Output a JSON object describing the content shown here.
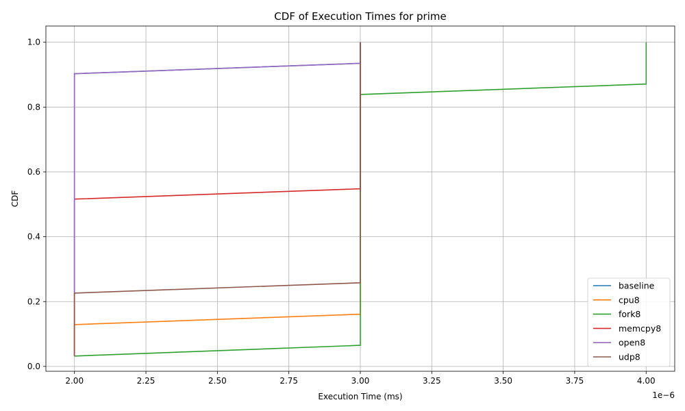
{
  "chart_data": {
    "type": "line",
    "title": "CDF of Execution Times for prime",
    "xlabel": "Execution Time (ms)",
    "ylabel": "CDF",
    "x_offset_label": "1e−6",
    "x_ticks": [
      2.0,
      2.25,
      2.5,
      2.75,
      3.0,
      3.25,
      3.5,
      3.75,
      4.0
    ],
    "x_tick_labels": [
      "2.00",
      "2.25",
      "2.50",
      "2.75",
      "3.00",
      "3.25",
      "3.50",
      "3.75",
      "4.00"
    ],
    "y_ticks": [
      0.0,
      0.2,
      0.4,
      0.6,
      0.8,
      1.0
    ],
    "y_tick_labels": [
      "0.0",
      "0.2",
      "0.4",
      "0.6",
      "0.8",
      "1.0"
    ],
    "xlim": [
      1.9,
      4.1
    ],
    "ylim": [
      -0.015,
      1.05
    ],
    "grid": true,
    "legend_position": "lower-right",
    "series": [
      {
        "name": "baseline",
        "color": "#1f77b4",
        "x": [
          2.0,
          2.0,
          3.0,
          3.0
        ],
        "y": [
          0.032,
          0.903,
          0.935,
          1.0
        ]
      },
      {
        "name": "cpu8",
        "color": "#ff7f0e",
        "x": [
          2.0,
          2.0,
          3.0,
          3.0
        ],
        "y": [
          0.032,
          0.129,
          0.161,
          1.0
        ]
      },
      {
        "name": "fork8",
        "color": "#2ca02c",
        "x": [
          2.0,
          3.0,
          3.0,
          4.0,
          4.0
        ],
        "y": [
          0.032,
          0.065,
          0.839,
          0.871,
          1.0
        ]
      },
      {
        "name": "memcpy8",
        "color": "#d62728",
        "x": [
          2.0,
          2.0,
          3.0,
          3.0
        ],
        "y": [
          0.032,
          0.516,
          0.548,
          1.0
        ]
      },
      {
        "name": "open8",
        "color": "#9467bd",
        "x": [
          2.0,
          2.0,
          3.0,
          3.0
        ],
        "y": [
          0.032,
          0.903,
          0.935,
          1.0
        ]
      },
      {
        "name": "udp8",
        "color": "#8c564b",
        "x": [
          2.0,
          2.0,
          3.0,
          3.0
        ],
        "y": [
          0.032,
          0.226,
          0.258,
          1.0
        ]
      }
    ]
  }
}
